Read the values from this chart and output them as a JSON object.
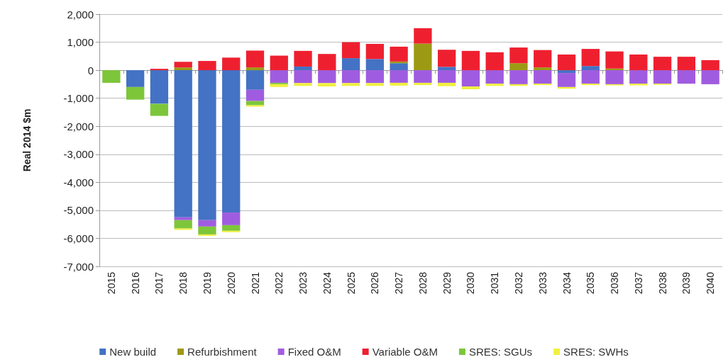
{
  "chart_data": {
    "type": "bar",
    "stacked": true,
    "ylabel": "Real 2014 $m",
    "categories": [
      "2015",
      "2016",
      "2017",
      "2018",
      "2019",
      "2020",
      "2021",
      "2022",
      "2023",
      "2024",
      "2025",
      "2026",
      "2027",
      "2028",
      "2029",
      "2030",
      "2031",
      "2032",
      "2033",
      "2034",
      "2035",
      "2036",
      "2037",
      "2038",
      "2039",
      "2040"
    ],
    "series": [
      {
        "name": "New build",
        "color": "#4472c4",
        "values": [
          0,
          -600,
          -1200,
          -5250,
          -5350,
          -5080,
          -700,
          0,
          130,
          0,
          430,
          400,
          250,
          0,
          120,
          0,
          0,
          0,
          0,
          -100,
          150,
          0,
          0,
          0,
          0,
          0
        ]
      },
      {
        "name": "Refurbishment",
        "color": "#9c9a14",
        "values": [
          0,
          0,
          0,
          100,
          0,
          0,
          100,
          0,
          0,
          0,
          0,
          0,
          60,
          950,
          0,
          0,
          0,
          250,
          100,
          0,
          0,
          60,
          0,
          0,
          0,
          0
        ]
      },
      {
        "name": "Fixed O&M",
        "color": "#a05ce0",
        "values": [
          0,
          0,
          0,
          -100,
          -230,
          -450,
          -400,
          -450,
          -460,
          -460,
          -460,
          -460,
          -450,
          -450,
          -450,
          -580,
          -480,
          -500,
          -480,
          -500,
          -480,
          -500,
          -480,
          -480,
          -480,
          -500
        ]
      },
      {
        "name": "Variable O&M",
        "color": "#ee2030",
        "values": [
          0,
          0,
          50,
          200,
          330,
          450,
          600,
          520,
          560,
          580,
          570,
          540,
          530,
          550,
          610,
          690,
          640,
          560,
          620,
          560,
          610,
          610,
          560,
          480,
          480,
          360
        ]
      },
      {
        "name": "SRES: SGUs",
        "color": "#7dc63a",
        "values": [
          -450,
          -450,
          -430,
          -300,
          -280,
          -200,
          -150,
          -50,
          0,
          0,
          0,
          0,
          0,
          0,
          0,
          0,
          0,
          0,
          0,
          0,
          0,
          0,
          0,
          0,
          0,
          0
        ]
      },
      {
        "name": "SRES: SWHs",
        "color": "#f0f040",
        "values": [
          0,
          0,
          0,
          -50,
          -50,
          -50,
          -50,
          -100,
          -100,
          -120,
          -100,
          -100,
          -100,
          -80,
          -120,
          -100,
          -80,
          -60,
          -50,
          -60,
          -50,
          -40,
          -60,
          -40,
          0,
          0
        ]
      }
    ],
    "ylim": [
      -7000,
      2000
    ],
    "yticks": [
      {
        "value": -7000,
        "label": "-7,000"
      },
      {
        "value": -6000,
        "label": "-6,000"
      },
      {
        "value": -5000,
        "label": "-5,000"
      },
      {
        "value": -4000,
        "label": "-4,000"
      },
      {
        "value": -3000,
        "label": "-3,000"
      },
      {
        "value": -2000,
        "label": "-2,000"
      },
      {
        "value": -1000,
        "label": "-1,000"
      },
      {
        "value": 0,
        "label": "0"
      },
      {
        "value": 1000,
        "label": "1,000"
      },
      {
        "value": 2000,
        "label": "2,000"
      }
    ],
    "grid": true,
    "legend": "bottom"
  }
}
